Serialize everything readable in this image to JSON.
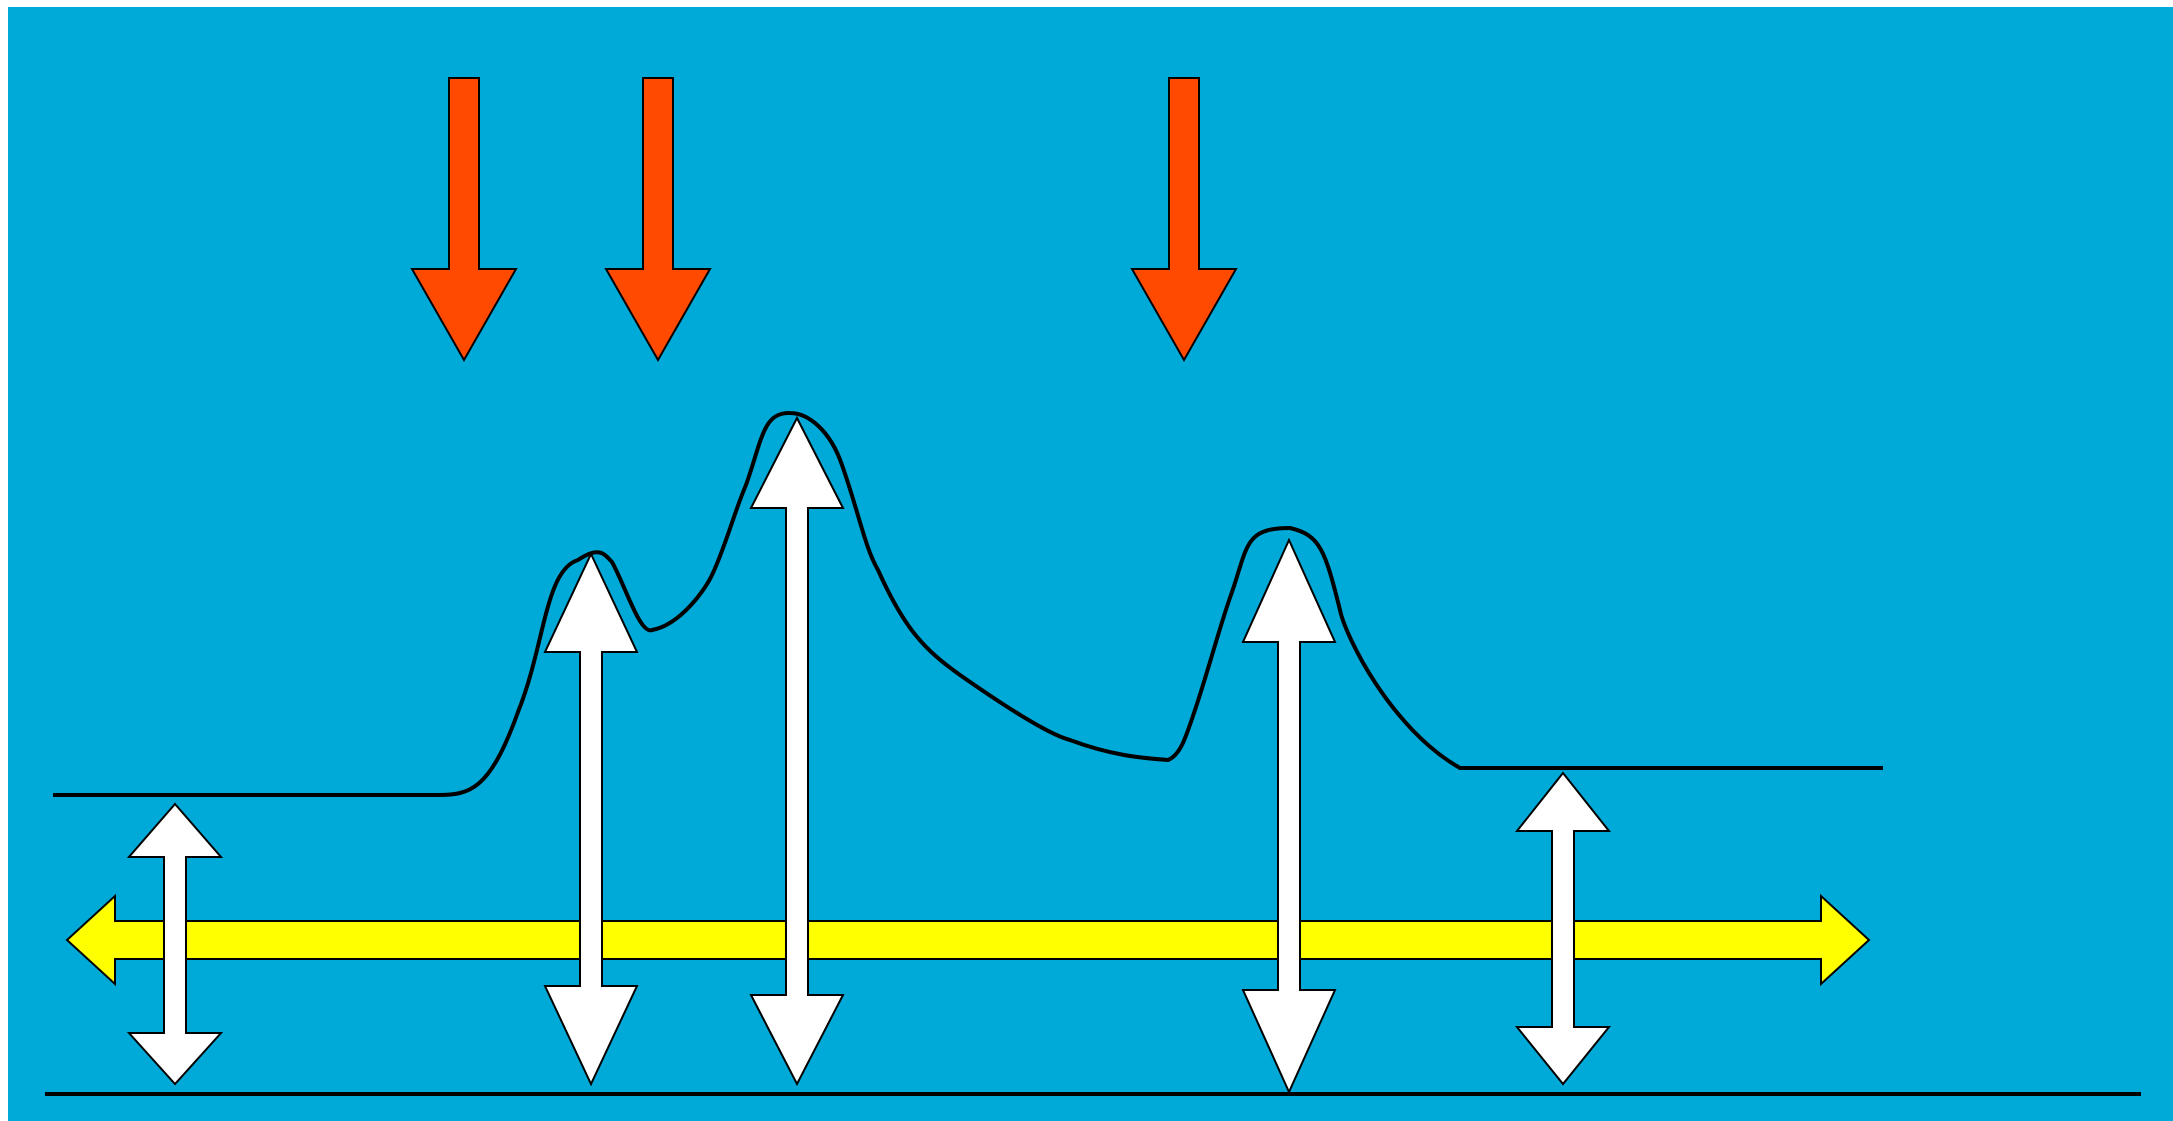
{
  "colors": {
    "page_background": "#FFFFFF",
    "diagram_background": "#00AAD8",
    "down_arrow_fill": "#FF4A00",
    "horizontal_arrow_fill": "#FFFF00",
    "vertical_arrow_fill": "#FFFFFF",
    "outline": "#000000"
  },
  "diagram": {
    "down_arrows": [
      {
        "id": "down-arrow-1",
        "icon": "arrow-down-icon"
      },
      {
        "id": "down-arrow-2",
        "icon": "arrow-down-icon"
      },
      {
        "id": "down-arrow-3",
        "icon": "arrow-down-icon"
      }
    ],
    "vertical_double_arrows": [
      {
        "id": "double-arrow-1",
        "icon": "double-arrow-vertical-icon"
      },
      {
        "id": "double-arrow-2",
        "icon": "double-arrow-vertical-icon"
      },
      {
        "id": "double-arrow-3",
        "icon": "double-arrow-vertical-icon"
      },
      {
        "id": "double-arrow-4",
        "icon": "double-arrow-vertical-icon"
      },
      {
        "id": "double-arrow-5",
        "icon": "double-arrow-vertical-icon"
      }
    ],
    "horizontal_double_arrow": {
      "id": "horizontal-double-arrow",
      "icon": "double-arrow-horizontal-icon"
    },
    "curve": {
      "id": "profile-curve"
    },
    "baseline": {
      "id": "baseline"
    }
  }
}
